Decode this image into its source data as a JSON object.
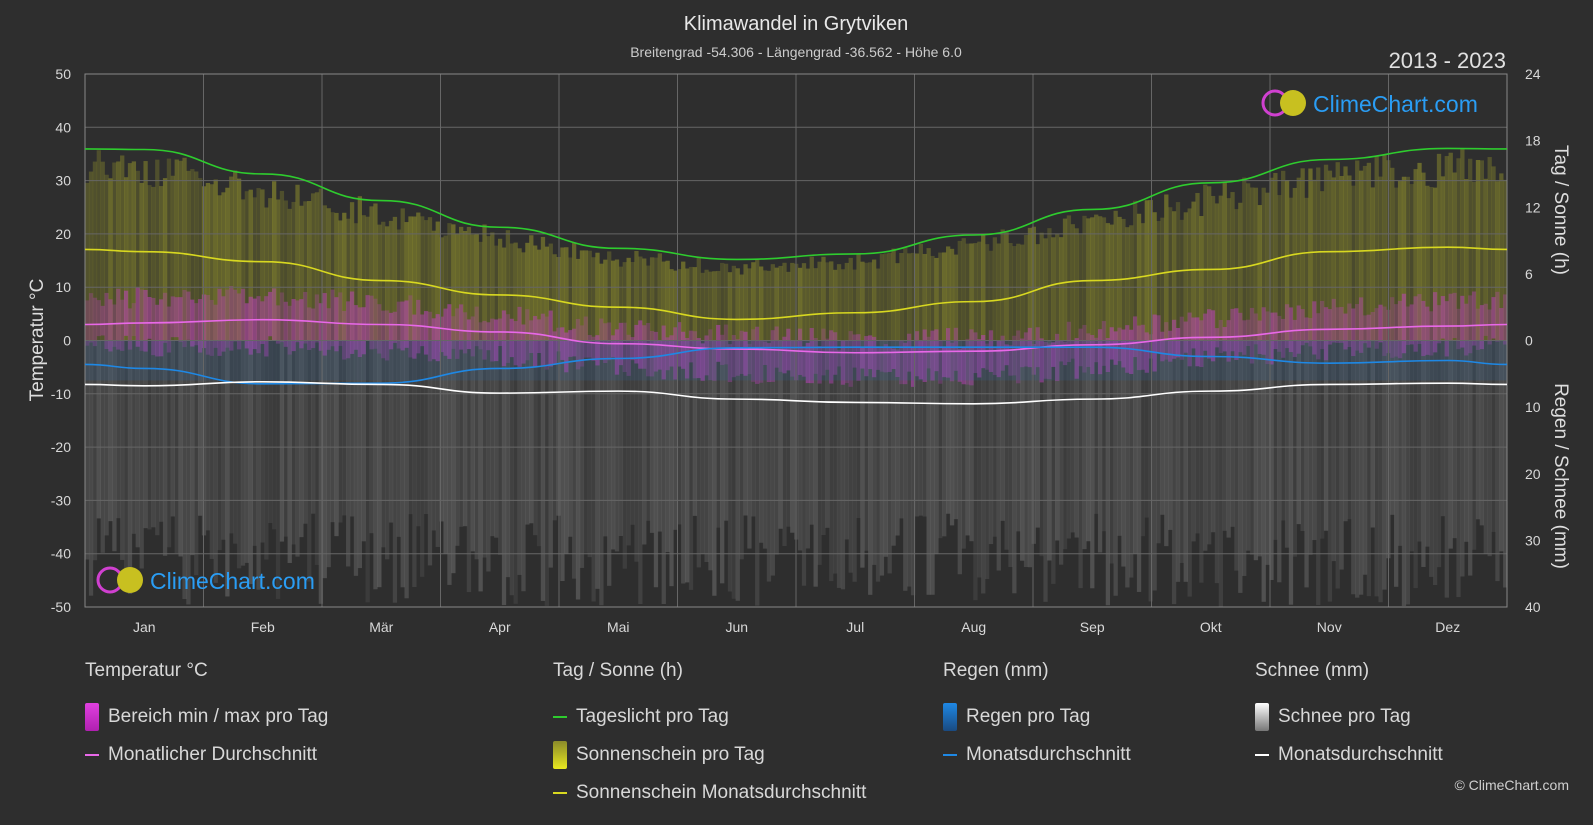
{
  "title": "Klimawandel in Grytviken",
  "subtitle": "Breitengrad -54.306 - Längengrad -36.562 - Höhe 6.0",
  "year_range": "2013 - 2023",
  "logo_text": "ClimeChart.com",
  "copyright": "© ClimeChart.com",
  "colors": {
    "background": "#2e2e2e",
    "daylight": "#2ecc2e",
    "sunshine": "#d8d820",
    "temp_avg": "#e868e8",
    "rain": "#1e88e5",
    "snow": "#ffffff",
    "logo": "#2a9df4"
  },
  "legend": {
    "temperature": {
      "title": "Temperatur °C",
      "range": "Bereich min / max pro Tag",
      "avg": "Monatlicher Durchschnitt"
    },
    "sun": {
      "title": "Tag / Sonne (h)",
      "daylight": "Tageslicht pro Tag",
      "sunshine": "Sonnenschein pro Tag",
      "sunshine_avg": "Sonnenschein Monatsdurchschnitt"
    },
    "rain": {
      "title": "Regen (mm)",
      "per_day": "Regen pro Tag",
      "avg": "Monatsdurchschnitt"
    },
    "snow": {
      "title": "Schnee (mm)",
      "per_day": "Schnee pro Tag",
      "avg": "Monatsdurchschnitt"
    }
  },
  "chart_data": {
    "type": "line",
    "categories": [
      "Jan",
      "Feb",
      "Mär",
      "Apr",
      "Mai",
      "Jun",
      "Jul",
      "Aug",
      "Sep",
      "Okt",
      "Nov",
      "Dez"
    ],
    "y_left": {
      "label": "Temperatur °C",
      "min": -50,
      "max": 50,
      "ticks": [
        50,
        40,
        30,
        20,
        10,
        0,
        -10,
        -20,
        -30,
        -40,
        -50
      ]
    },
    "y_right_top": {
      "label": "Tag / Sonne (h)",
      "min": 0,
      "max": 24,
      "ticks": [
        24,
        18,
        12,
        6,
        0
      ]
    },
    "y_right_bottom": {
      "label": "Regen / Schnee (mm)",
      "min": 0,
      "max": 40,
      "ticks": [
        10,
        20,
        30,
        40
      ]
    },
    "grid": true,
    "series": [
      {
        "name": "Tageslicht pro Tag",
        "axis": "sun_h",
        "values": [
          17.2,
          15.0,
          12.6,
          10.2,
          8.3,
          7.3,
          7.8,
          9.5,
          11.8,
          14.2,
          16.3,
          17.3
        ]
      },
      {
        "name": "Sonnenschein Monatsdurchschnitt",
        "axis": "sun_h",
        "values": [
          8.0,
          7.1,
          5.4,
          4.1,
          3.0,
          1.9,
          2.5,
          3.5,
          5.4,
          6.4,
          8.0,
          8.4
        ]
      },
      {
        "name": "Monatlicher Durchschnitt",
        "axis": "temp_c",
        "values": [
          3.3,
          3.9,
          3.0,
          1.6,
          -0.6,
          -1.6,
          -2.3,
          -2.0,
          -0.8,
          0.6,
          2.1,
          2.7
        ]
      },
      {
        "name": "Regen Monatsdurchschnitt",
        "axis": "precip_mm",
        "values": [
          4.2,
          6.5,
          6.4,
          4.2,
          2.7,
          1.1,
          1.0,
          1.0,
          1.0,
          2.4,
          3.4,
          3.0
        ]
      },
      {
        "name": "Schnee Monatsdurchschnitt",
        "axis": "precip_mm",
        "values": [
          6.8,
          6.2,
          6.6,
          7.9,
          7.6,
          8.8,
          9.3,
          9.5,
          8.8,
          7.6,
          6.6,
          6.4
        ]
      }
    ],
    "temp_range_monthly": {
      "max": [
        8,
        8.5,
        7,
        5,
        2,
        1,
        0,
        0.5,
        2,
        4,
        6,
        7.5
      ],
      "min": [
        -1,
        -1,
        -2,
        -3,
        -5,
        -6,
        -7,
        -7,
        -5,
        -3,
        -2,
        -1
      ]
    }
  }
}
